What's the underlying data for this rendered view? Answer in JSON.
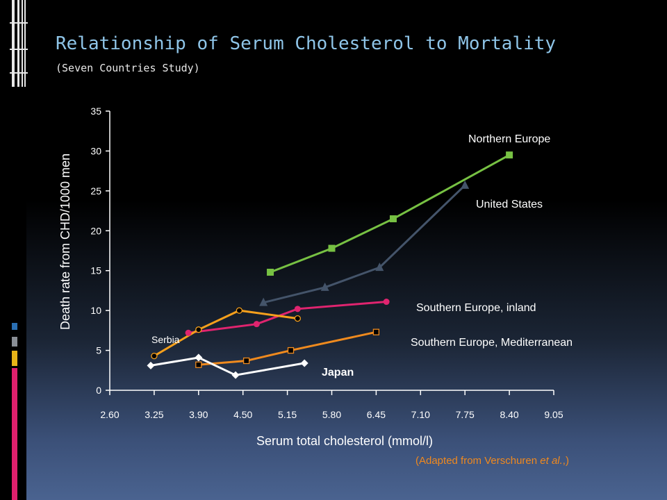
{
  "slide": {
    "title": "Relationship of Serum Cholesterol to Mortality",
    "subtitle": "(Seven Countries Study)",
    "source_prefix": "(Adapted from Verschuren ",
    "source_italic": "et al.",
    "source_suffix": ",)",
    "decor_icon": "ruled-grid-icon",
    "stripe_colors": [
      "#2a6fb3",
      "#8a8f96",
      "#e8b418",
      "#e0206e"
    ]
  },
  "chart_data": {
    "type": "line",
    "title": "",
    "xlabel": "Serum total cholesterol (mmol/l)",
    "ylabel": "Death rate from CHD/1000 men",
    "xlim": [
      2.6,
      9.05
    ],
    "ylim": [
      0,
      35
    ],
    "x_ticks": [
      "2.60",
      "3.25",
      "3.90",
      "4.50",
      "5.15",
      "5.80",
      "6.45",
      "7.10",
      "7.75",
      "8.40",
      "9.05"
    ],
    "y_ticks": [
      "0",
      "5",
      "10",
      "15",
      "20",
      "25",
      "30",
      "35"
    ],
    "grid": false,
    "legend": "none",
    "series": [
      {
        "name": "Northern Europe",
        "marker": "square-filled",
        "color": "#77c143",
        "points": [
          [
            4.9,
            14.8
          ],
          [
            5.8,
            17.8
          ],
          [
            6.7,
            21.5
          ],
          [
            8.4,
            29.5
          ]
        ]
      },
      {
        "name": "United States",
        "marker": "triangle-filled",
        "color": "#44546a",
        "points": [
          [
            4.8,
            11.0
          ],
          [
            5.7,
            12.9
          ],
          [
            6.5,
            15.4
          ],
          [
            7.75,
            25.7
          ]
        ]
      },
      {
        "name": "Southern Europe, inland",
        "marker": "circle-filled",
        "color": "#e0246f",
        "points": [
          [
            3.75,
            7.2
          ],
          [
            4.7,
            8.3
          ],
          [
            5.3,
            10.2
          ],
          [
            6.6,
            11.1
          ]
        ]
      },
      {
        "name": "Serbia",
        "marker": "circle-open",
        "color": "#f6a01c",
        "points": [
          [
            3.25,
            4.3
          ],
          [
            3.9,
            7.6
          ],
          [
            4.45,
            10.0
          ],
          [
            5.3,
            9.0
          ]
        ]
      },
      {
        "name": "Southern Europe, Mediterranean",
        "marker": "square-open",
        "color": "#ef8a1e",
        "points": [
          [
            3.9,
            3.2
          ],
          [
            4.55,
            3.7
          ],
          [
            5.2,
            5.0
          ],
          [
            6.45,
            7.3
          ]
        ]
      },
      {
        "name": "Japan",
        "marker": "diamond-filled",
        "color": "#ffffff",
        "points": [
          [
            3.2,
            3.1
          ],
          [
            3.9,
            4.1
          ],
          [
            4.4,
            1.9
          ],
          [
            5.4,
            3.4
          ]
        ]
      }
    ],
    "labels": [
      {
        "series": "Northern Europe",
        "text": "Northern Europe",
        "color": "#ffffff"
      },
      {
        "series": "United States",
        "text": "United States",
        "color": "#ffffff"
      },
      {
        "series": "Southern Europe, inland",
        "text": "Southern Europe, inland",
        "color": "#ffffff"
      },
      {
        "series": "Southern Europe, Mediterranean",
        "text": "Southern Europe, Mediterranean",
        "color": "#ffffff"
      },
      {
        "series": "Serbia",
        "text": "Serbia",
        "color": "#ffffff"
      },
      {
        "series": "Japan",
        "text": "Japan",
        "color": "#ffffff"
      }
    ],
    "text_color": "#ffffff"
  }
}
